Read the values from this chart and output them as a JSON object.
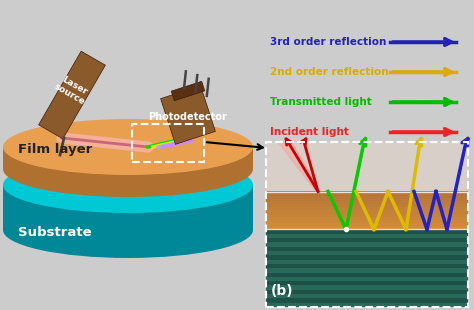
{
  "bg_color": "#cccccc",
  "substrate_top_color": "#00c8d4",
  "substrate_side_color": "#008899",
  "film_top_color": "#e8a050",
  "film_side_color": "#b07030",
  "device_color": "#8B5A2B",
  "device_dark": "#5a3010",
  "pin_color": "#444444",
  "legend_items": [
    {
      "label": "Incident light",
      "color": "#ee2222"
    },
    {
      "label": "Transmitted light",
      "color": "#00bb00"
    },
    {
      "label": "2nd order reflection",
      "color": "#ddaa00"
    },
    {
      "label": "3rd order reflection",
      "color": "#2222bb"
    }
  ],
  "inset_label": "(b)",
  "film_label": "Film layer",
  "substrate_label": "Substrate",
  "laser_label": "Laser\nsource",
  "detector_label": "Photodetector",
  "arrow_color": "#000000",
  "inset_air_color": "#d8d0c8",
  "inset_film_color1": "#d49060",
  "inset_film_color2": "#c07840",
  "inset_sub_color1": "#2a6858",
  "inset_sub_color2": "#1e5248",
  "inset_border_color": "#ffffff"
}
